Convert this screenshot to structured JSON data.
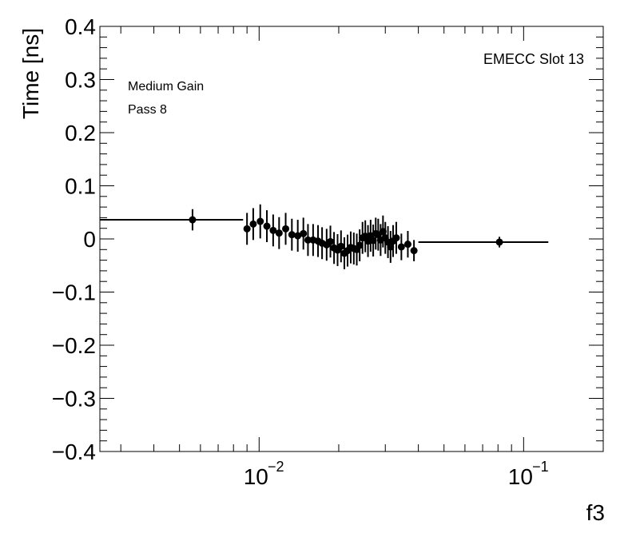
{
  "chart_data": {
    "type": "scatter",
    "title": "",
    "xlabel": "f3",
    "ylabel": "Time [ns]",
    "x_scale": "log",
    "xlim": [
      0.0025,
      0.2
    ],
    "ylim": [
      -0.4,
      0.4
    ],
    "x_ticks": [
      {
        "value": 0.01,
        "label": "10",
        "exp": "−2"
      },
      {
        "value": 0.1,
        "label": "10",
        "exp": "−1"
      }
    ],
    "y_ticks": [
      {
        "value": 0.4,
        "label": "0.4"
      },
      {
        "value": 0.3,
        "label": "0.3"
      },
      {
        "value": 0.2,
        "label": "0.2"
      },
      {
        "value": 0.1,
        "label": "0.1"
      },
      {
        "value": 0.0,
        "label": "0"
      },
      {
        "value": -0.1,
        "label": "−0.1"
      },
      {
        "value": -0.2,
        "label": "−0.2"
      },
      {
        "value": -0.3,
        "label": "−0.3"
      },
      {
        "value": -0.4,
        "label": "−0.4"
      }
    ],
    "annotations": {
      "top_right": "EMECC Slot 13",
      "top_left_line1": "Medium Gain",
      "top_left_line2": "Pass 8"
    },
    "grid": false,
    "marker_color": "#000000",
    "series": [
      {
        "points": [
          {
            "x": 0.0056,
            "y": 0.036,
            "xlo": 0.0025,
            "xhi": 0.0087,
            "err": 0.02
          },
          {
            "x": 0.009,
            "y": 0.019,
            "err": 0.03
          },
          {
            "x": 0.0095,
            "y": 0.028,
            "err": 0.03
          },
          {
            "x": 0.0101,
            "y": 0.033,
            "err": 0.032
          },
          {
            "x": 0.0107,
            "y": 0.024,
            "err": 0.03
          },
          {
            "x": 0.0113,
            "y": 0.016,
            "err": 0.03
          },
          {
            "x": 0.0119,
            "y": 0.011,
            "err": 0.03
          },
          {
            "x": 0.0126,
            "y": 0.019,
            "err": 0.03
          },
          {
            "x": 0.0133,
            "y": 0.008,
            "err": 0.03
          },
          {
            "x": 0.014,
            "y": 0.006,
            "err": 0.03
          },
          {
            "x": 0.0147,
            "y": 0.01,
            "err": 0.03
          },
          {
            "x": 0.0153,
            "y": -0.002,
            "err": 0.03
          },
          {
            "x": 0.016,
            "y": -0.002,
            "err": 0.03
          },
          {
            "x": 0.0167,
            "y": -0.004,
            "err": 0.03
          },
          {
            "x": 0.0173,
            "y": -0.008,
            "err": 0.03
          },
          {
            "x": 0.018,
            "y": -0.011,
            "err": 0.03
          },
          {
            "x": 0.0186,
            "y": -0.005,
            "err": 0.03
          },
          {
            "x": 0.0192,
            "y": -0.017,
            "err": 0.03
          },
          {
            "x": 0.0198,
            "y": -0.021,
            "err": 0.03
          },
          {
            "x": 0.0204,
            "y": -0.014,
            "err": 0.03
          },
          {
            "x": 0.021,
            "y": -0.027,
            "err": 0.03
          },
          {
            "x": 0.0216,
            "y": -0.022,
            "err": 0.03
          },
          {
            "x": 0.0222,
            "y": -0.016,
            "err": 0.03
          },
          {
            "x": 0.0228,
            "y": -0.018,
            "err": 0.03
          },
          {
            "x": 0.0234,
            "y": -0.02,
            "err": 0.03
          },
          {
            "x": 0.024,
            "y": -0.012,
            "err": 0.03
          },
          {
            "x": 0.0246,
            "y": 0.002,
            "err": 0.03
          },
          {
            "x": 0.0252,
            "y": 0.005,
            "err": 0.03
          },
          {
            "x": 0.0258,
            "y": -0.004,
            "err": 0.03
          },
          {
            "x": 0.0264,
            "y": 0.006,
            "err": 0.03
          },
          {
            "x": 0.027,
            "y": -0.003,
            "err": 0.03
          },
          {
            "x": 0.0276,
            "y": 0.01,
            "err": 0.03
          },
          {
            "x": 0.0282,
            "y": 0.008,
            "err": 0.03
          },
          {
            "x": 0.0288,
            "y": -0.002,
            "err": 0.03
          },
          {
            "x": 0.0294,
            "y": 0.014,
            "err": 0.03
          },
          {
            "x": 0.03,
            "y": 0.002,
            "err": 0.03
          },
          {
            "x": 0.0307,
            "y": -0.006,
            "err": 0.03
          },
          {
            "x": 0.0314,
            "y": -0.015,
            "err": 0.03
          },
          {
            "x": 0.0321,
            "y": -0.004,
            "err": 0.03
          },
          {
            "x": 0.033,
            "y": 0.002,
            "err": 0.03
          },
          {
            "x": 0.0345,
            "y": -0.015,
            "err": 0.025
          },
          {
            "x": 0.0365,
            "y": -0.01,
            "err": 0.025
          },
          {
            "x": 0.0385,
            "y": -0.022,
            "err": 0.02
          },
          {
            "x": 0.081,
            "y": -0.006,
            "xlo": 0.04,
            "xhi": 0.124,
            "err": 0.01
          }
        ]
      }
    ]
  }
}
